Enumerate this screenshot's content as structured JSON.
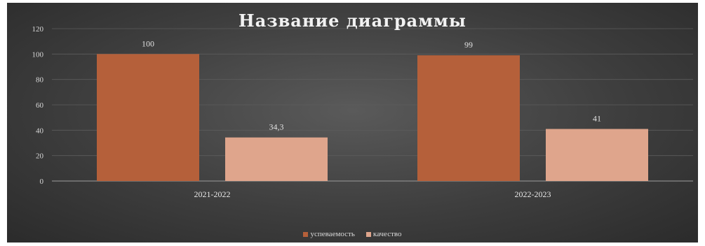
{
  "chart_data": {
    "type": "bar",
    "title": "Название диаграммы",
    "categories": [
      "2021-2022",
      "2022-2023"
    ],
    "series": [
      {
        "name": "успеваемость",
        "values": [
          100,
          99
        ],
        "labels": [
          "100",
          "99"
        ],
        "color": "#b5603a"
      },
      {
        "name": "качество",
        "values": [
          34.3,
          41
        ],
        "labels": [
          "34,3",
          "41"
        ],
        "color": "#dfa58c"
      }
    ],
    "xlabel": "",
    "ylabel": "",
    "ylim": [
      0,
      120
    ],
    "yticks": [
      0,
      20,
      40,
      60,
      80,
      100,
      120
    ],
    "grid": true,
    "legend_position": "bottom",
    "background": "#3e3e3e"
  }
}
